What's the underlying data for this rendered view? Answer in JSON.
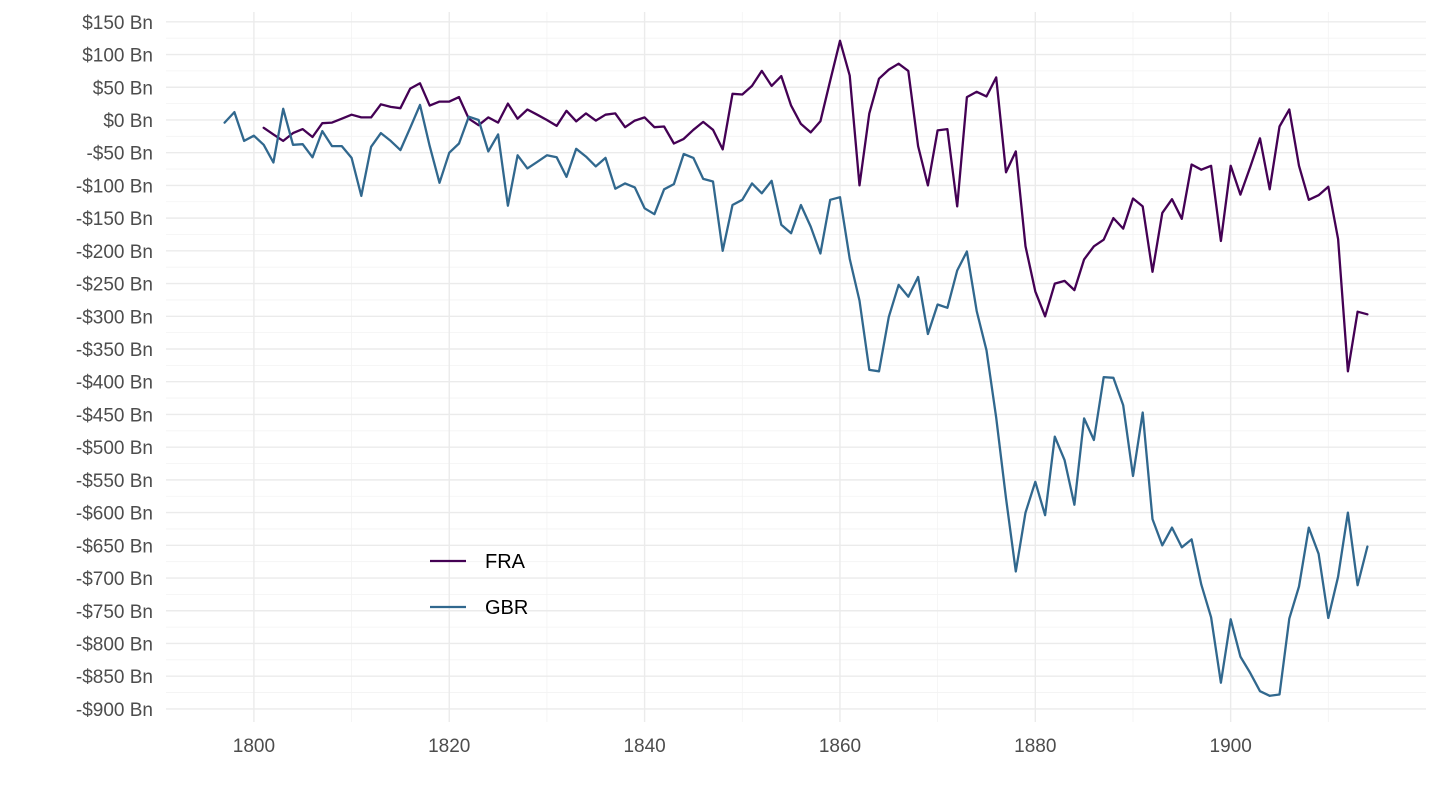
{
  "chart_data": {
    "type": "line",
    "title": "",
    "xlabel": "",
    "ylabel": "",
    "xlim": [
      1791,
      1920
    ],
    "ylim": [
      -920,
      165
    ],
    "x_ticks": [
      1800,
      1820,
      1840,
      1860,
      1880,
      1900
    ],
    "x_tick_labels": [
      "1800",
      "1820",
      "1840",
      "1860",
      "1880",
      "1900"
    ],
    "y_ticks": [
      150,
      100,
      50,
      0,
      -50,
      -100,
      -150,
      -200,
      -250,
      -300,
      -350,
      -400,
      -450,
      -500,
      -550,
      -600,
      -650,
      -700,
      -750,
      -800,
      -850,
      -900
    ],
    "y_tick_labels": [
      "$150 Bn",
      "$100 Bn",
      "$50 Bn",
      "$0 Bn",
      "-$50 Bn",
      "-$100 Bn",
      "-$150 Bn",
      "-$200 Bn",
      "-$250 Bn",
      "-$300 Bn",
      "-$350 Bn",
      "-$400 Bn",
      "-$450 Bn",
      "-$500 Bn",
      "-$550 Bn",
      "-$600 Bn",
      "-$650 Bn",
      "-$700 Bn",
      "-$750 Bn",
      "-$800 Bn",
      "-$850 Bn",
      "-$900 Bn"
    ],
    "grid": true,
    "legend_position": "bottom-left inside plot",
    "series": [
      {
        "name": "FRA",
        "color": "#440154",
        "x": [
          1801,
          1802,
          1803,
          1804,
          1805,
          1806,
          1807,
          1808,
          1809,
          1810,
          1811,
          1812,
          1813,
          1814,
          1815,
          1816,
          1817,
          1818,
          1819,
          1820,
          1821,
          1822,
          1823,
          1824,
          1825,
          1826,
          1827,
          1828,
          1829,
          1830,
          1831,
          1832,
          1833,
          1834,
          1835,
          1836,
          1837,
          1838,
          1839,
          1840,
          1841,
          1842,
          1843,
          1844,
          1845,
          1846,
          1847,
          1848,
          1849,
          1850,
          1851,
          1852,
          1853,
          1854,
          1855,
          1856,
          1857,
          1858,
          1859,
          1860,
          1861,
          1862,
          1863,
          1864,
          1865,
          1866,
          1867,
          1868,
          1869,
          1870,
          1871,
          1872,
          1873,
          1874,
          1875,
          1876,
          1877,
          1878,
          1879,
          1880,
          1881,
          1882,
          1883,
          1884,
          1885,
          1886,
          1887,
          1888,
          1889,
          1890,
          1891,
          1892,
          1893,
          1894,
          1895,
          1896,
          1897,
          1898,
          1899,
          1900,
          1901,
          1902,
          1903,
          1904,
          1905,
          1906,
          1907,
          1908,
          1909,
          1910,
          1911,
          1912,
          1913,
          1914
        ],
        "y": [
          -12,
          -22,
          -32,
          -20,
          -14,
          -26,
          -5,
          -4,
          2,
          8,
          4,
          4,
          24,
          20,
          18,
          48,
          56,
          22,
          28,
          28,
          35,
          2,
          -8,
          4,
          -4,
          25,
          2,
          16,
          8,
          0,
          -9,
          14,
          -2,
          10,
          -1,
          8,
          10,
          -11,
          -1,
          4,
          -11,
          -10,
          -36,
          -29,
          -15,
          -3,
          -15,
          -45,
          40,
          39,
          52,
          75,
          52,
          67,
          22,
          -6,
          -19,
          -2,
          60,
          121,
          68,
          -100,
          10,
          63,
          77,
          86,
          75,
          -40,
          -100,
          -16,
          -14,
          -132,
          35,
          43,
          36,
          65,
          -80,
          -48,
          -193,
          -262,
          -300,
          -250,
          -246,
          -260,
          -213,
          -193,
          -183,
          -150,
          -166,
          -120,
          -132,
          -232,
          -142,
          -121,
          -151,
          -68,
          -76,
          -70,
          -185,
          -70,
          -114,
          -72,
          -28,
          -106,
          -10,
          16,
          -70,
          -122,
          -115,
          -102,
          -182,
          -384,
          -293,
          -297
        ]
      },
      {
        "name": "GBR",
        "color": "#31688e",
        "x": [
          1797,
          1798,
          1799,
          1800,
          1801,
          1802,
          1803,
          1804,
          1805,
          1806,
          1807,
          1808,
          1809,
          1810,
          1811,
          1812,
          1813,
          1814,
          1815,
          1816,
          1817,
          1818,
          1819,
          1820,
          1821,
          1822,
          1823,
          1824,
          1825,
          1826,
          1827,
          1828,
          1829,
          1830,
          1831,
          1832,
          1833,
          1834,
          1835,
          1836,
          1837,
          1838,
          1839,
          1840,
          1841,
          1842,
          1843,
          1844,
          1845,
          1846,
          1847,
          1848,
          1849,
          1850,
          1851,
          1852,
          1853,
          1854,
          1855,
          1856,
          1857,
          1858,
          1859,
          1860,
          1861,
          1862,
          1863,
          1864,
          1865,
          1866,
          1867,
          1868,
          1869,
          1870,
          1871,
          1872,
          1873,
          1874,
          1875,
          1876,
          1877,
          1878,
          1879,
          1880,
          1881,
          1882,
          1883,
          1884,
          1885,
          1886,
          1887,
          1888,
          1889,
          1890,
          1891,
          1892,
          1893,
          1894,
          1895,
          1896,
          1897,
          1898,
          1899,
          1900,
          1901,
          1902,
          1903,
          1904,
          1905,
          1906,
          1907,
          1908,
          1909,
          1910,
          1911,
          1912,
          1913,
          1914
        ],
        "y": [
          -4,
          12,
          -32,
          -24,
          -38,
          -65,
          17,
          -38,
          -37,
          -57,
          -17,
          -40,
          -40,
          -58,
          -116,
          -41,
          -20,
          -32,
          -46,
          -12,
          23,
          -40,
          -96,
          -50,
          -36,
          5,
          0,
          -48,
          -22,
          -131,
          -54,
          -74,
          -64,
          -54,
          -57,
          -87,
          -44,
          -56,
          -71,
          -58,
          -105,
          -97,
          -103,
          -135,
          -144,
          -106,
          -98,
          -52,
          -58,
          -90,
          -94,
          -200,
          -130,
          -122,
          -97,
          -112,
          -93,
          -160,
          -173,
          -130,
          -163,
          -204,
          -122,
          -118,
          -212,
          -276,
          -382,
          -384,
          -301,
          -252,
          -270,
          -240,
          -327,
          -282,
          -287,
          -230,
          -201,
          -292,
          -352,
          -455,
          -578,
          -690,
          -600,
          -553,
          -604,
          -484,
          -520,
          -588,
          -456,
          -489,
          -393,
          -394,
          -436,
          -544,
          -447,
          -610,
          -650,
          -623,
          -653,
          -641,
          -710,
          -760,
          -860,
          -763,
          -820,
          -845,
          -873,
          -880,
          -878,
          -762,
          -713,
          -623,
          -663,
          -761,
          -698,
          -600,
          -711,
          -652
        ]
      }
    ]
  }
}
